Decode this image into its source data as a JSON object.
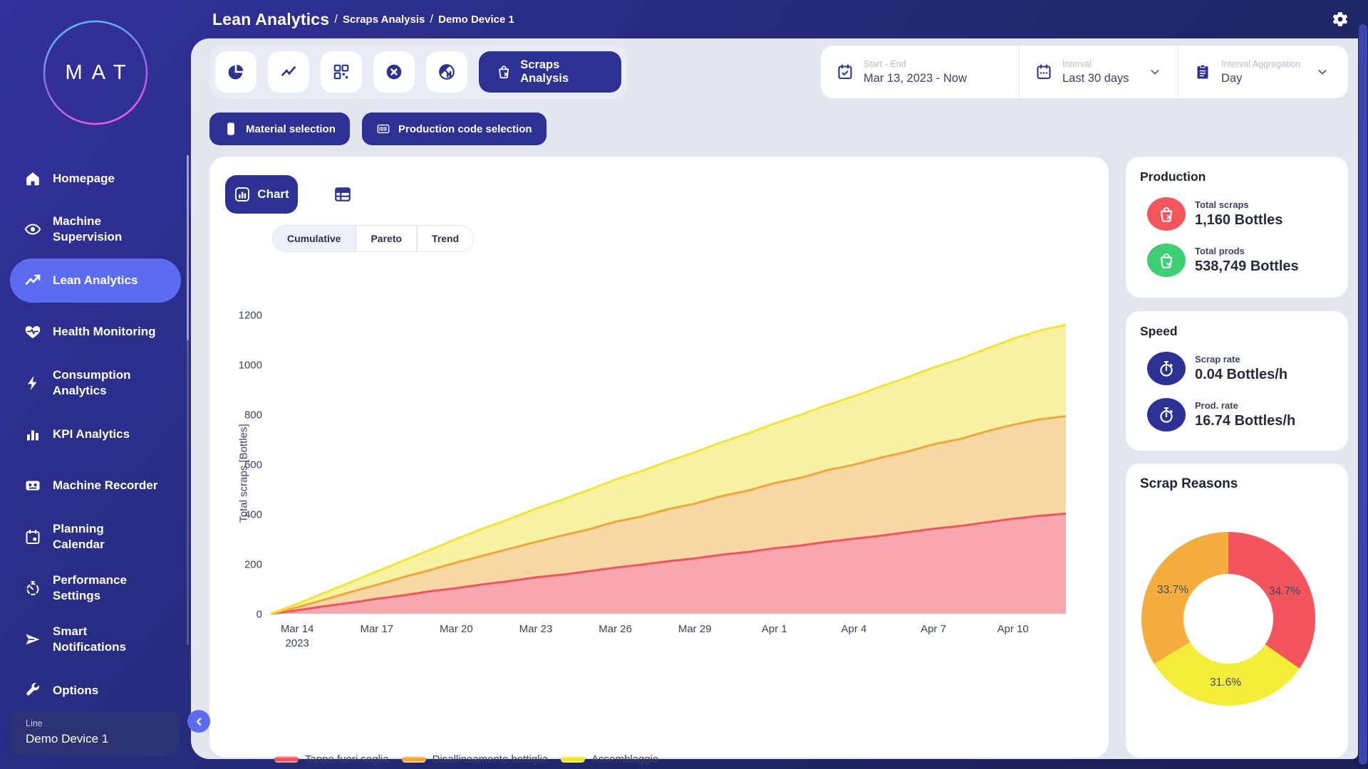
{
  "logo": {
    "text": "MAT"
  },
  "topbar": {
    "title": "Lean Analytics",
    "separator": "/",
    "breadcrumbs": [
      "Scraps Analysis",
      "Demo Device 1"
    ]
  },
  "sidebar": {
    "items": [
      {
        "label": "Homepage",
        "icon": "home-icon"
      },
      {
        "label": "Machine\nSupervision",
        "icon": "eye-icon"
      },
      {
        "label": "Lean Analytics",
        "icon": "trend-icon",
        "active": true
      },
      {
        "label": "Health Monitoring",
        "icon": "heart-pulse-icon"
      },
      {
        "label": "Consumption\nAnalytics",
        "icon": "bolt-icon"
      },
      {
        "label": "KPI Analytics",
        "icon": "bar-chart-icon"
      },
      {
        "label": "Machine Recorder",
        "icon": "cassette-icon"
      },
      {
        "label": "Planning\nCalendar",
        "icon": "calendar-icon"
      },
      {
        "label": "Performance\nSettings",
        "icon": "gauge-icon"
      },
      {
        "label": "Smart\nNotifications",
        "icon": "send-icon"
      },
      {
        "label": "Options",
        "icon": "wrench-icon"
      }
    ],
    "device": {
      "label": "Line",
      "value": "Demo Device 1"
    }
  },
  "toolbar": {
    "icons": [
      "pie-chart",
      "trend-line",
      "qr-grid",
      "cancel-circle",
      "no-data-chart"
    ],
    "active_label": "Scraps Analysis"
  },
  "controls": {
    "start_end": {
      "label": "Start - End",
      "value": "Mar 13, 2023 - Now"
    },
    "interval": {
      "label": "Interval",
      "value": "Last 30 days"
    },
    "aggregation": {
      "label": "Interval Aggregation",
      "value": "Day"
    }
  },
  "selection_buttons": {
    "material": "Material selection",
    "production_code": "Production code selection"
  },
  "view": {
    "chart_tab": "Chart",
    "modes": [
      "Cumulative",
      "Pareto",
      "Trend"
    ],
    "active_mode": "Cumulative"
  },
  "chart_data": {
    "type": "area",
    "stacked": true,
    "ylabel": "Total scraps [Bottles]",
    "ylim": [
      0,
      1200
    ],
    "yticks": [
      0,
      200,
      400,
      600,
      800,
      1000,
      1200
    ],
    "x_start_date": "Mar 13, 2023",
    "x_tick_labels": [
      "Mar 14",
      "Mar 17",
      "Mar 20",
      "Mar 23",
      "Mar 26",
      "Mar 29",
      "Apr 1",
      "Apr 4",
      "Apr 7",
      "Apr 10"
    ],
    "x_tick_days": [
      1,
      4,
      7,
      10,
      13,
      16,
      19,
      22,
      25,
      28
    ],
    "x_first_tick_year": "2023",
    "legend_position": "bottom",
    "series": [
      {
        "name": "Tappo fuori soglia",
        "color": "#ee5560",
        "fill": "#f9a6ae",
        "values": [
          0,
          14,
          30,
          44,
          60,
          74,
          90,
          103,
          118,
          131,
          146,
          157,
          171,
          185,
          197,
          211,
          222,
          237,
          248,
          263,
          274,
          289,
          301,
          313,
          327,
          341,
          352,
          367,
          381,
          393,
          402
        ]
      },
      {
        "name": "Disallineamento bottiglia",
        "color": "#f1a53e",
        "fill": "#f8d8a4",
        "values": [
          0,
          12,
          26,
          43,
          56,
          73,
          85,
          103,
          115,
          130,
          142,
          157,
          168,
          184,
          194,
          209,
          220,
          235,
          246,
          261,
          272,
          287,
          297,
          313,
          323,
          339,
          349,
          365,
          377,
          387,
          391
        ]
      },
      {
        "name": "Assemblaggio",
        "color": "#f1e433",
        "fill": "#f9f2a2",
        "values": [
          0,
          14,
          27,
          39,
          54,
          66,
          81,
          94,
          109,
          119,
          134,
          144,
          158,
          169,
          182,
          192,
          206,
          216,
          229,
          239,
          253,
          262,
          275,
          285,
          298,
          308,
          321,
          331,
          345,
          356,
          367
        ]
      }
    ]
  },
  "production": {
    "title": "Production",
    "rows": [
      {
        "label": "Total scraps",
        "value": "1,160 Bottles",
        "icon": "bag-x-icon",
        "color": "#f4565e"
      },
      {
        "label": "Total prods",
        "value": "538,749 Bottles",
        "icon": "bag-check-icon",
        "color": "#3ecf74"
      }
    ]
  },
  "speed": {
    "title": "Speed",
    "rows": [
      {
        "label": "Scrap rate",
        "value": "0.04 Bottles/h",
        "icon": "stopwatch-icon",
        "color": "#2c3193"
      },
      {
        "label": "Prod. rate",
        "value": "16.74 Bottles/h",
        "icon": "stopwatch-icon",
        "color": "#2c3193"
      }
    ]
  },
  "scrap_reasons": {
    "title": "Scrap Reasons",
    "type": "donut",
    "slices": [
      {
        "label": "Tappo fuori soglia",
        "pct": 34.7,
        "color": "#f4545c"
      },
      {
        "label": "Assemblaggio",
        "pct": 31.6,
        "color": "#f4ee3b"
      },
      {
        "label": "Disallineamento bottiglia",
        "pct": 33.7,
        "color": "#f5ae3d"
      }
    ]
  },
  "colors": {
    "accent_dark_blue": "#2c3193",
    "active_blue": "#5b6cf0",
    "panel_bg": "#e4e6ef",
    "red": "#f4545c",
    "green": "#3ecf74",
    "orange": "#f5ae3d",
    "yellow": "#f4ee3b"
  }
}
